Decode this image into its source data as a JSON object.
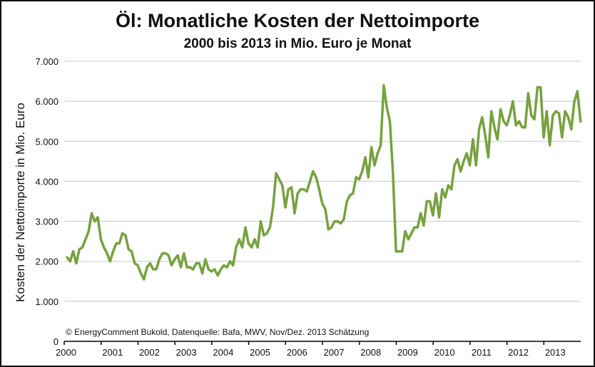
{
  "chart_data": {
    "type": "line",
    "title": "Öl: Monatliche Kosten der Nettoimporte",
    "subtitle": "2000 bis 2013 in Mio. Euro je Monat",
    "ylabel": "Kosten der Nettoimporte in Mio. Euro",
    "xlabel": "",
    "annotation": "© EnergyComment Bukold, Datenquelle: Bafa, MWV, Nov/Dez. 2013 Schätzung",
    "x_start_year": 2000,
    "x_tick_labels": [
      "2000",
      "2001",
      "2002",
      "2003",
      "2004",
      "2005",
      "2006",
      "2007",
      "2008",
      "2009",
      "2010",
      "2011",
      "2012",
      "2013"
    ],
    "y_tick_labels": [
      "0",
      "1.000",
      "2.000",
      "3.000",
      "4.000",
      "5.000",
      "6.000",
      "7.000"
    ],
    "ylim": [
      0,
      7000
    ],
    "grid": true,
    "series_color": "#77a23f",
    "series": [
      {
        "values": [
          2100,
          2000,
          2250,
          1950,
          2300,
          2350,
          2550,
          2750,
          3200,
          3000,
          3100,
          2550,
          2350,
          2200,
          2000,
          2250,
          2450,
          2450,
          2700,
          2650,
          2300,
          2250,
          1950,
          1900,
          1700,
          1550,
          1850,
          1950,
          1800,
          1800,
          2050,
          2200,
          2200,
          2150,
          1900,
          2050,
          2150,
          1850,
          2200,
          1850,
          1850,
          1800,
          1950,
          1950,
          1700,
          2050,
          1800,
          1750,
          1800,
          1650,
          1800,
          1900,
          1850,
          2000,
          1900,
          2350,
          2550,
          2350,
          2850,
          2450,
          2350,
          2550,
          2350,
          3000,
          2650,
          2700,
          2850,
          3350,
          4200,
          4050,
          3900,
          3350,
          3800,
          3850,
          3200,
          3700,
          3800,
          3800,
          3750,
          4000,
          4250,
          4100,
          3800,
          3450,
          3300,
          2800,
          2850,
          3000,
          3000,
          2950,
          3050,
          3500,
          3650,
          3700,
          4100,
          4050,
          4250,
          4600,
          4100,
          4850,
          4400,
          4700,
          4900,
          6400,
          5850,
          5500,
          4200,
          2250,
          2250,
          2250,
          2750,
          2550,
          2700,
          2850,
          2850,
          3200,
          2900,
          3500,
          3500,
          3150,
          3700,
          3100,
          3800,
          3600,
          3900,
          3800,
          4400,
          4550,
          4250,
          4500,
          4700,
          4400,
          5050,
          4400,
          5300,
          5600,
          5150,
          4600,
          5750,
          5350,
          5050,
          5800,
          5500,
          5400,
          5650,
          6000,
          5400,
          5500,
          5350,
          5350,
          6200,
          5650,
          5550,
          6350,
          6350,
          5100,
          5750,
          4900,
          5650,
          5750,
          5700,
          5100,
          5750,
          5600,
          5300,
          6000,
          6250,
          5500
        ]
      }
    ]
  }
}
